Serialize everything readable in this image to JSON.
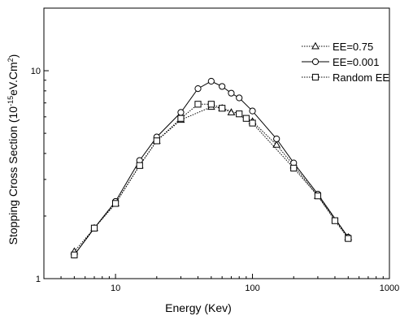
{
  "chart_data": {
    "type": "line",
    "title": "",
    "xlabel": "Energy (Kev)",
    "ylabel_main": "Stopping Cross Section (10",
    "ylabel_sup": "-15",
    "ylabel_rest": "eV.Cm",
    "ylabel_sup2": "2",
    "ylabel_close": ")",
    "x_scale": "log",
    "y_scale": "log",
    "xlim": [
      3,
      1000
    ],
    "ylim": [
      1,
      20
    ],
    "x_ticks": [
      {
        "value": 10,
        "label": "10"
      },
      {
        "value": 100,
        "label": "100"
      },
      {
        "value": 1000,
        "label": "1000"
      }
    ],
    "y_ticks": [
      {
        "value": 1,
        "label": "1"
      },
      {
        "value": 10,
        "label": "10"
      }
    ],
    "grid": false,
    "legend_position": "top-right",
    "series": [
      {
        "name": "EE=0.75",
        "marker": "triangle",
        "line": "dotted",
        "x": [
          5,
          7,
          10,
          15,
          20,
          30,
          50,
          60,
          70,
          100,
          150,
          200,
          300,
          500
        ],
        "y": [
          1.35,
          1.75,
          2.3,
          3.5,
          4.6,
          5.8,
          6.7,
          6.6,
          6.3,
          5.7,
          4.4,
          3.5,
          2.5,
          1.58
        ]
      },
      {
        "name": "EE=0.001",
        "marker": "circle",
        "line": "solid",
        "x": [
          5,
          7,
          10,
          15,
          20,
          30,
          40,
          50,
          60,
          70,
          80,
          100,
          150,
          200,
          300,
          500
        ],
        "y": [
          1.3,
          1.75,
          2.35,
          3.7,
          4.8,
          6.3,
          8.2,
          8.9,
          8.4,
          7.8,
          7.4,
          6.4,
          4.7,
          3.6,
          2.55,
          1.58
        ]
      },
      {
        "name": "Random EE",
        "marker": "square",
        "line": "dotted",
        "x": [
          5,
          7,
          10,
          15,
          20,
          30,
          40,
          50,
          60,
          80,
          90,
          100,
          200,
          300,
          400,
          500
        ],
        "y": [
          1.3,
          1.75,
          2.3,
          3.5,
          4.6,
          5.9,
          6.9,
          6.9,
          6.6,
          6.2,
          5.9,
          5.6,
          3.4,
          2.5,
          1.9,
          1.56
        ]
      }
    ]
  }
}
